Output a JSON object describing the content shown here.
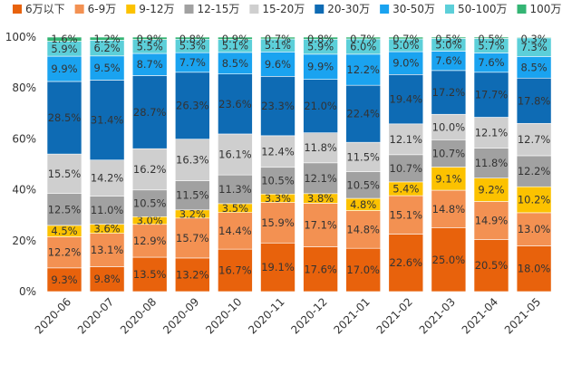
{
  "chart_data": {
    "type": "bar",
    "stacked": true,
    "normalized": true,
    "categories": [
      "2020-06",
      "2020-07",
      "2020-08",
      "2020-09",
      "2020-10",
      "2020-11",
      "2020-12",
      "2021-01",
      "2021-02",
      "2021-03",
      "2021-04",
      "2021-05"
    ],
    "ylim": [
      0,
      100
    ],
    "yticks": [
      "0%",
      "20%",
      "40%",
      "60%",
      "80%",
      "100%"
    ],
    "legend_position": "top",
    "series": [
      {
        "name": "6万以下",
        "color": "#e8620c",
        "values": [
          9.3,
          9.8,
          13.5,
          13.2,
          16.7,
          19.1,
          17.6,
          17.0,
          22.6,
          25.0,
          20.5,
          18.0
        ],
        "labels": [
          "9.3%",
          "9.8%",
          "13.5%",
          "13.2%",
          "16.7%",
          "19.1%",
          "17.6%",
          "17.0%",
          "22.6%",
          "25.0%",
          "20.5%",
          "18.0%"
        ]
      },
      {
        "name": "6-9万",
        "color": "#f39152",
        "values": [
          12.2,
          13.1,
          12.9,
          15.7,
          14.4,
          15.9,
          17.1,
          14.8,
          15.1,
          14.8,
          14.9,
          13.0
        ],
        "labels": [
          "12.2%",
          "13.1%",
          "12.9%",
          "15.7%",
          "14.4%",
          "15.9%",
          "17.1%",
          "14.8%",
          "15.1%",
          "14.8%",
          "14.9%",
          "13.0%"
        ]
      },
      {
        "name": "9-12万",
        "color": "#fcc200",
        "values": [
          4.5,
          3.6,
          3.0,
          3.2,
          3.5,
          3.3,
          3.8,
          4.8,
          5.4,
          9.1,
          9.2,
          10.2
        ],
        "labels": [
          "4.5%",
          "3.6%",
          "3.0%",
          "3.2%",
          "3.5%",
          "3.3%",
          "3.8%",
          "4.8%",
          "5.4%",
          "9.1%",
          "9.2%",
          "10.2%"
        ]
      },
      {
        "name": "12-15万",
        "color": "#a1a1a1",
        "values": [
          12.5,
          11.0,
          10.5,
          11.5,
          11.3,
          10.5,
          12.1,
          10.5,
          10.7,
          10.7,
          11.8,
          12.2
        ],
        "labels": [
          "12.5%",
          "11.0%",
          "10.5%",
          "11.5%",
          "11.3%",
          "10.5%",
          "12.1%",
          "10.5%",
          "10.7%",
          "10.7%",
          "11.8%",
          "12.2%"
        ]
      },
      {
        "name": "15-20万",
        "color": "#cfcfcf",
        "values": [
          15.5,
          14.2,
          16.2,
          16.3,
          16.1,
          12.4,
          11.8,
          11.5,
          12.1,
          10.0,
          12.1,
          12.7
        ],
        "labels": [
          "15.5%",
          "14.2%",
          "16.2%",
          "16.3%",
          "16.1%",
          "12.4%",
          "11.8%",
          "11.5%",
          "12.1%",
          "10.0%",
          "12.1%",
          "12.7%"
        ]
      },
      {
        "name": "20-30万",
        "color": "#0e6bb4",
        "values": [
          28.5,
          31.4,
          28.7,
          26.3,
          23.6,
          23.3,
          21.0,
          22.4,
          19.4,
          17.2,
          17.7,
          17.8
        ],
        "labels": [
          "28.5%",
          "31.4%",
          "28.7%",
          "26.3%",
          "23.6%",
          "23.3%",
          "21.0%",
          "22.4%",
          "19.4%",
          "17.2%",
          "17.7%",
          "17.8%"
        ]
      },
      {
        "name": "30-50万",
        "color": "#1aa3f0",
        "values": [
          9.9,
          9.5,
          8.7,
          7.7,
          8.5,
          9.6,
          9.9,
          12.2,
          9.0,
          7.6,
          7.6,
          8.5
        ],
        "labels": [
          "9.9%",
          "9.5%",
          "8.7%",
          "7.7%",
          "8.5%",
          "9.6%",
          "9.9%",
          "12.2%",
          "9.0%",
          "7.6%",
          "7.6%",
          "8.5%"
        ]
      },
      {
        "name": "50-100万",
        "color": "#5ccfd9",
        "values": [
          5.9,
          6.2,
          5.5,
          5.3,
          5.1,
          5.1,
          5.9,
          6.0,
          5.0,
          5.0,
          5.7,
          7.3
        ],
        "labels": [
          "5.9%",
          "6.2%",
          "5.5%",
          "5.3%",
          "5.1%",
          "5.1%",
          "5.9%",
          "6.0%",
          "5.0%",
          "5.0%",
          "5.7%",
          "7.3%"
        ]
      },
      {
        "name": "100万以上",
        "color": "#34b574",
        "values": [
          1.6,
          1.2,
          0.9,
          0.8,
          0.9,
          0.7,
          0.8,
          0.7,
          0.7,
          0.5,
          0.5,
          0.3
        ],
        "labels": [
          "1.6%",
          "1.2%",
          "0.9%",
          "0.8%",
          "0.9%",
          "0.7%",
          "0.8%",
          "0.7%",
          "0.7%",
          "0.5%",
          "0.5%",
          "0.3%"
        ]
      }
    ]
  }
}
